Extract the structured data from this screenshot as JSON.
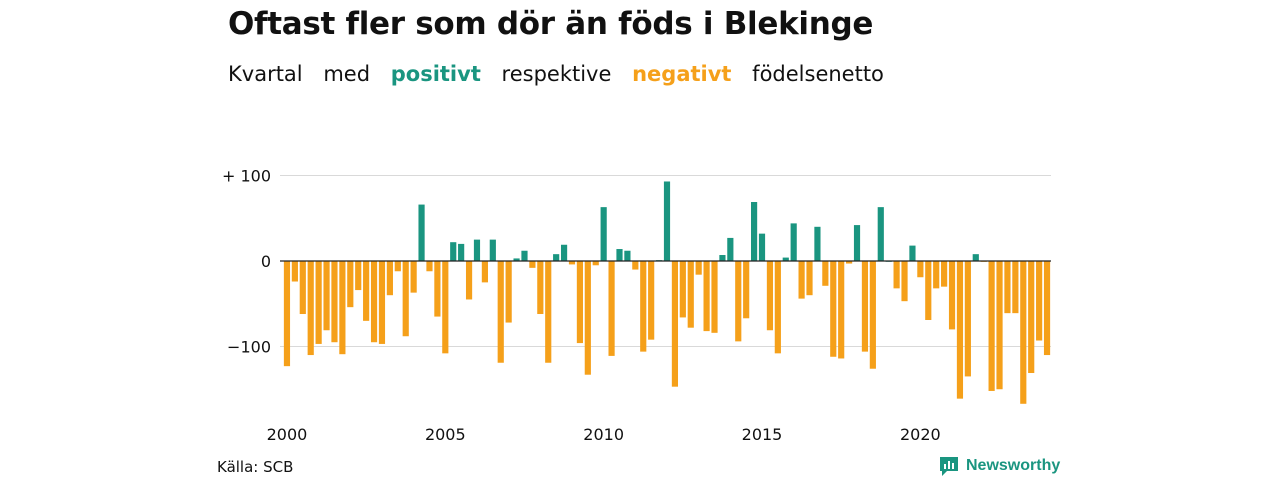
{
  "title": "Oftast fler som dör än föds i Blekinge",
  "subtitle": {
    "w1": "Kvartal",
    "w2": "med",
    "positive": "positivt",
    "w3": "respektive",
    "negative": "negativt",
    "w4": "födelsenetto"
  },
  "source": "Källa: SCB",
  "brand": "Newsworthy",
  "colors": {
    "positive": "#1a9580",
    "negative": "#f5a01a",
    "grid": "#d9d9d9",
    "zero": "#222222"
  },
  "chart_data": {
    "type": "bar",
    "x_start": "2000 Q1",
    "x_ticks": [
      "2000",
      "2005",
      "2010",
      "2015",
      "2020"
    ],
    "y_ticks": [
      {
        "value": 100,
        "label": "+ 100"
      },
      {
        "value": 0,
        "label": "0"
      },
      {
        "value": -100,
        "label": "−100"
      }
    ],
    "ylim": [
      -175,
      100
    ],
    "values": [
      -123,
      -24,
      -62,
      -110,
      -97,
      -81,
      -95,
      -109,
      -54,
      -34,
      -70,
      -95,
      -97,
      -40,
      -12,
      -88,
      -37,
      66,
      -12,
      -65,
      -108,
      22,
      20,
      -45,
      25,
      -25,
      25,
      -119,
      -72,
      3,
      12,
      -8,
      -62,
      -119,
      8,
      19,
      -4,
      -96,
      -133,
      -5,
      63,
      -111,
      14,
      12,
      -10,
      -106,
      -92,
      1,
      93,
      -147,
      -66,
      -78,
      -16,
      -82,
      -84,
      7,
      27,
      -94,
      -67,
      69,
      32,
      -81,
      -108,
      4,
      44,
      -44,
      -40,
      40,
      -29,
      -112,
      -114,
      -3,
      42,
      -106,
      -126,
      63,
      0,
      -32,
      -47,
      18,
      -19,
      -69,
      -32,
      -30,
      -80,
      -161,
      -135,
      8,
      -1,
      -152,
      -150,
      -61,
      -61,
      -167,
      -131,
      -93,
      -110
    ]
  }
}
